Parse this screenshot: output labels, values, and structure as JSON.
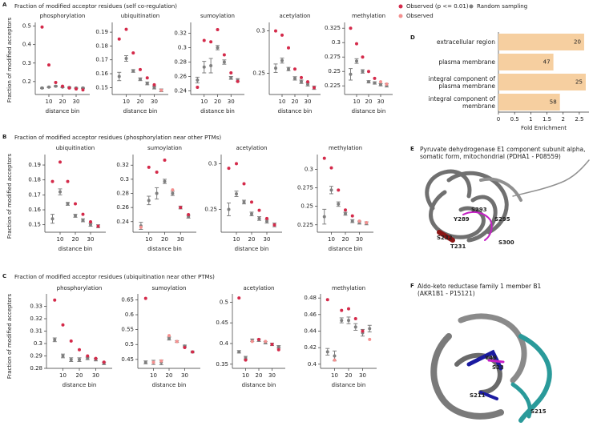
{
  "chart_data": [
    {
      "type": "dotplot",
      "panel": "A",
      "title": "Fraction of modified acceptor residues (self co-regulation)",
      "ylabel": "Fraction of modified acceptors",
      "legend": [
        {
          "name": "Observed (p <= 0.01)",
          "color": "#d42a4a"
        },
        {
          "name": "Random sampling",
          "color": "#7f7f7f"
        },
        {
          "name": "Observed",
          "color": "#f4908f"
        }
      ],
      "x": [
        5,
        10,
        15,
        20,
        25,
        30,
        35
      ],
      "subplots": [
        {
          "title": "phosphorylation",
          "xlabel": "distance bin",
          "xlim": [
            0,
            40
          ],
          "xticks": [
            10,
            20,
            30
          ],
          "ylim": [
            0.13,
            0.52
          ],
          "yticks": [
            0.2,
            0.3,
            0.4,
            0.5
          ],
          "observed": {
            "values": [
              0.495,
              0.29,
              0.195,
              0.175,
              0.165,
              0.16,
              0.155
            ],
            "significant": [
              true,
              true,
              true,
              true,
              true,
              true,
              true
            ]
          },
          "random": {
            "values": [
              0.165,
              0.17,
              0.175,
              0.17,
              0.168,
              0.165,
              0.165
            ],
            "errors": [
              0.003,
              0.003,
              0.003,
              0.003,
              0.003,
              0.003,
              0.003
            ]
          }
        },
        {
          "title": "ubiquitination",
          "xlabel": "distance bin",
          "xlim": [
            0,
            40
          ],
          "xticks": [
            10,
            20,
            30
          ],
          "ylim": [
            0.145,
            0.197
          ],
          "yticks": [
            0.15,
            0.16,
            0.17,
            0.18,
            0.19
          ],
          "observed": {
            "values": [
              0.185,
              0.192,
              0.175,
              0.163,
              0.157,
              0.152,
              0.148
            ],
            "significant": [
              true,
              true,
              true,
              true,
              true,
              true,
              false
            ]
          },
          "random": {
            "values": [
              0.158,
              0.171,
              0.162,
              0.156,
              0.153,
              0.15,
              0.148
            ],
            "errors": [
              0.003,
              0.002,
              0.001,
              0.001,
              0.001,
              0.001,
              0.001
            ]
          }
        },
        {
          "title": "sumoylation",
          "xlabel": "distance bin",
          "xlim": [
            0,
            40
          ],
          "xticks": [
            10,
            20,
            30
          ],
          "ylim": [
            0.235,
            0.335
          ],
          "yticks": [
            0.24,
            0.26,
            0.28,
            0.3,
            0.32
          ],
          "observed": {
            "values": [
              0.245,
              0.31,
              0.308,
              0.325,
              0.29,
              0.265,
              0.253
            ],
            "significant": [
              true,
              true,
              true,
              true,
              true,
              true,
              true
            ]
          },
          "random": {
            "values": [
              0.255,
              0.273,
              0.275,
              0.3,
              0.28,
              0.258,
              0.255
            ],
            "errors": [
              0.004,
              0.008,
              0.01,
              0.003,
              0.003,
              0.002,
              0.002
            ]
          }
        },
        {
          "title": "acetylation",
          "xlabel": "distance bin",
          "xlim": [
            0,
            40
          ],
          "xticks": [
            10,
            20,
            30
          ],
          "ylim": [
            0.225,
            0.31
          ],
          "yticks": [
            0.25,
            0.3
          ],
          "observed": {
            "values": [
              0.3,
              0.295,
              0.28,
              0.255,
              0.245,
              0.24,
              0.233
            ],
            "significant": [
              true,
              true,
              true,
              true,
              true,
              true,
              true
            ]
          },
          "random": {
            "values": [
              0.256,
              0.265,
              0.255,
              0.244,
              0.24,
              0.237,
              0.233
            ],
            "errors": [
              0.005,
              0.003,
              0.002,
              0.002,
              0.002,
              0.002,
              0.002
            ]
          }
        },
        {
          "title": "methylation",
          "xlabel": "distance bin",
          "xlim": [
            0,
            40
          ],
          "xticks": [
            10,
            20,
            30
          ],
          "ylim": [
            0.21,
            0.335
          ],
          "yticks": [
            0.225,
            0.25,
            0.275,
            0.3,
            0.325
          ],
          "observed": {
            "values": [
              0.325,
              0.298,
              0.275,
              0.25,
              0.238,
              0.232,
              0.228
            ],
            "significant": [
              true,
              true,
              true,
              true,
              true,
              false,
              false
            ]
          },
          "random": {
            "values": [
              0.245,
              0.268,
              0.25,
              0.232,
              0.23,
              0.227,
              0.226
            ],
            "errors": [
              0.01,
              0.004,
              0.003,
              0.002,
              0.002,
              0.002,
              0.003
            ]
          }
        }
      ]
    },
    {
      "type": "dotplot",
      "panel": "B",
      "title": "Fraction of modified acceptor residues (phosphorylation near other PTMs)",
      "ylabel": "Fraction of modified acceptors",
      "x": [
        5,
        10,
        15,
        20,
        25,
        30,
        35
      ],
      "subplots": [
        {
          "title": "ubiquitination",
          "xlabel": "distance bin",
          "xlim": [
            0,
            40
          ],
          "xticks": [
            10,
            20,
            30
          ],
          "ylim": [
            0.145,
            0.197
          ],
          "yticks": [
            0.15,
            0.16,
            0.17,
            0.18,
            0.19
          ],
          "observed": {
            "values": [
              0.179,
              0.192,
              0.179,
              0.164,
              0.157,
              0.152,
              0.149
            ],
            "significant": [
              true,
              true,
              true,
              true,
              true,
              true,
              true
            ]
          },
          "random": {
            "values": [
              0.154,
              0.172,
              0.164,
              0.156,
              0.153,
              0.15,
              0.149
            ],
            "errors": [
              0.003,
              0.002,
              0.001,
              0.001,
              0.001,
              0.001,
              0.001
            ]
          }
        },
        {
          "title": "sumoylation",
          "xlabel": "distance bin",
          "xlim": [
            0,
            40
          ],
          "xticks": [
            10,
            20,
            30
          ],
          "ylim": [
            0.225,
            0.335
          ],
          "yticks": [
            0.24,
            0.26,
            0.28,
            0.3,
            0.32
          ],
          "observed": {
            "values": [
              0.232,
              0.317,
              0.31,
              0.327,
              0.285,
              0.26,
              0.25
            ],
            "significant": [
              false,
              true,
              true,
              true,
              false,
              true,
              true
            ]
          },
          "random": {
            "values": [
              0.234,
              0.27,
              0.28,
              0.297,
              0.28,
              0.26,
              0.247
            ],
            "errors": [
              0.005,
              0.006,
              0.008,
              0.003,
              0.003,
              0.002,
              0.002
            ]
          }
        },
        {
          "title": "acetylation",
          "xlabel": "distance bin",
          "xlim": [
            0,
            40
          ],
          "xticks": [
            10,
            20,
            30
          ],
          "ylim": [
            0.225,
            0.31
          ],
          "yticks": [
            0.25,
            0.3
          ],
          "observed": {
            "values": [
              0.295,
              0.3,
              0.278,
              0.258,
              0.249,
              0.24,
              0.233
            ],
            "significant": [
              true,
              true,
              true,
              true,
              true,
              true,
              true
            ]
          },
          "random": {
            "values": [
              0.25,
              0.267,
              0.258,
              0.245,
              0.24,
              0.237,
              0.233
            ],
            "errors": [
              0.007,
              0.003,
              0.002,
              0.002,
              0.002,
              0.002,
              0.002
            ]
          }
        },
        {
          "title": "methylation",
          "xlabel": "distance bin",
          "xlim": [
            0,
            40
          ],
          "xticks": [
            10,
            20,
            30
          ],
          "ylim": [
            0.215,
            0.32
          ],
          "yticks": [
            0.225,
            0.25,
            0.275,
            0.3
          ],
          "observed": {
            "values": [
              0.315,
              0.302,
              0.272,
              0.245,
              0.237,
              0.23,
              0.228
            ],
            "significant": [
              true,
              true,
              true,
              true,
              true,
              false,
              false
            ]
          },
          "random": {
            "values": [
              0.236,
              0.272,
              0.253,
              0.24,
              0.23,
              0.228,
              0.227
            ],
            "errors": [
              0.01,
              0.005,
              0.003,
              0.002,
              0.002,
              0.002,
              0.002
            ]
          }
        }
      ]
    },
    {
      "type": "dotplot",
      "panel": "C",
      "title": "Fraction of modified acceptor residues (ubiquitination near other PTMs)",
      "ylabel": "Fraction of modified acceptors",
      "x": [
        5,
        10,
        15,
        20,
        25,
        30,
        35
      ],
      "subplots": [
        {
          "title": "phosphorylation",
          "xlabel": "distance bin",
          "xlim": [
            0,
            40
          ],
          "xticks": [
            10,
            20,
            30
          ],
          "ylim": [
            0.28,
            0.34
          ],
          "yticks": [
            0.28,
            0.29,
            0.3,
            0.31,
            0.32,
            0.33
          ],
          "observed": {
            "values": [
              0.335,
              0.315,
              0.302,
              0.295,
              0.29,
              0.288,
              0.285
            ],
            "significant": [
              true,
              true,
              true,
              true,
              true,
              true,
              true
            ]
          },
          "random": {
            "values": [
              0.303,
              0.29,
              0.287,
              0.287,
              0.288,
              0.287,
              0.284
            ],
            "errors": [
              0.0015,
              0.0015,
              0.0015,
              0.0015,
              0.001,
              0.001,
              0.001
            ]
          }
        },
        {
          "title": "sumoylation",
          "xlabel": "distance bin",
          "xlim": [
            0,
            40
          ],
          "xticks": [
            10,
            20,
            30
          ],
          "ylim": [
            0.42,
            0.67
          ],
          "yticks": [
            0.45,
            0.5,
            0.55,
            0.6,
            0.65
          ],
          "observed": {
            "values": [
              0.655,
              0.44,
              0.445,
              0.53,
              0.51,
              0.49,
              0.475
            ],
            "significant": [
              true,
              false,
              false,
              false,
              false,
              true,
              true
            ]
          },
          "random": {
            "values": [
              0.44,
              0.44,
              0.44,
              0.52,
              0.51,
              0.495,
              0.475
            ],
            "errors": [
              0.005,
              0.007,
              0.008,
              0.005,
              0.003,
              0.003,
              0.003
            ]
          }
        },
        {
          "title": "acetylation",
          "xlabel": "distance bin",
          "xlim": [
            0,
            40
          ],
          "xticks": [
            10,
            20,
            30
          ],
          "ylim": [
            0.34,
            0.52
          ],
          "yticks": [
            0.35,
            0.4,
            0.45,
            0.5
          ],
          "observed": {
            "values": [
              0.51,
              0.36,
              0.405,
              0.41,
              0.405,
              0.398,
              0.385
            ],
            "significant": [
              true,
              true,
              false,
              true,
              false,
              true,
              true
            ]
          },
          "random": {
            "values": [
              0.38,
              0.365,
              0.408,
              0.408,
              0.402,
              0.398,
              0.392
            ],
            "errors": [
              0.003,
              0.004,
              0.003,
              0.003,
              0.003,
              0.003,
              0.003
            ]
          }
        },
        {
          "title": "methylation",
          "xlabel": "distance bin",
          "xlim": [
            0,
            40
          ],
          "xticks": [
            10,
            20,
            30
          ],
          "ylim": [
            0.395,
            0.485
          ],
          "yticks": [
            0.4,
            0.42,
            0.44,
            0.46,
            0.48
          ],
          "observed": {
            "values": [
              0.478,
              0.405,
              0.465,
              0.467,
              0.455,
              0.44,
              0.43
            ],
            "significant": [
              true,
              false,
              true,
              true,
              true,
              true,
              false
            ]
          },
          "random": {
            "values": [
              0.415,
              0.41,
              0.453,
              0.453,
              0.445,
              0.438,
              0.443
            ],
            "errors": [
              0.004,
              0.006,
              0.003,
              0.004,
              0.004,
              0.004,
              0.004
            ]
          }
        }
      ]
    },
    {
      "type": "barh",
      "panel": "D",
      "categories": [
        "extracellular region",
        "plasma membrane",
        "integral component of plasma membrane",
        "integral component of membrane"
      ],
      "values": [
        2.65,
        1.7,
        2.7,
        1.9
      ],
      "counts": [
        20,
        47,
        25,
        58
      ],
      "color": "#f6cfa0",
      "xlim": [
        0,
        2.8
      ],
      "xticks": [
        0,
        0.5,
        1,
        1.5,
        2,
        2.5
      ],
      "xlabel": "Fold Enrichment"
    }
  ],
  "structures": [
    {
      "panel": "E",
      "title": "Pyruvate dehydrogenase E1 component subunit alpha, somatic form, mitochondrial (PDHA1 - P08559)",
      "residues": [
        {
          "label": "Y289",
          "color": "#c41fc4"
        },
        {
          "label": "S293",
          "color": "#c41fc4"
        },
        {
          "label": "S295",
          "color": "#c41fc4"
        },
        {
          "label": "S232",
          "color": "#8b1515"
        },
        {
          "label": "T231",
          "color": "#8b1515"
        },
        {
          "label": "S300",
          "color": "#c41fc4"
        }
      ]
    },
    {
      "panel": "F",
      "title": "Aldo-keto reductase family 1 member B1 (AKR1B1 - P15121)",
      "residues": [
        {
          "label": "Y49",
          "color": "#c41fc4"
        },
        {
          "label": "S23",
          "color": "#c41fc4"
        },
        {
          "label": "S211",
          "color": "#c41fc4"
        },
        {
          "label": "S215",
          "color": "#c41fc4"
        }
      ]
    }
  ]
}
